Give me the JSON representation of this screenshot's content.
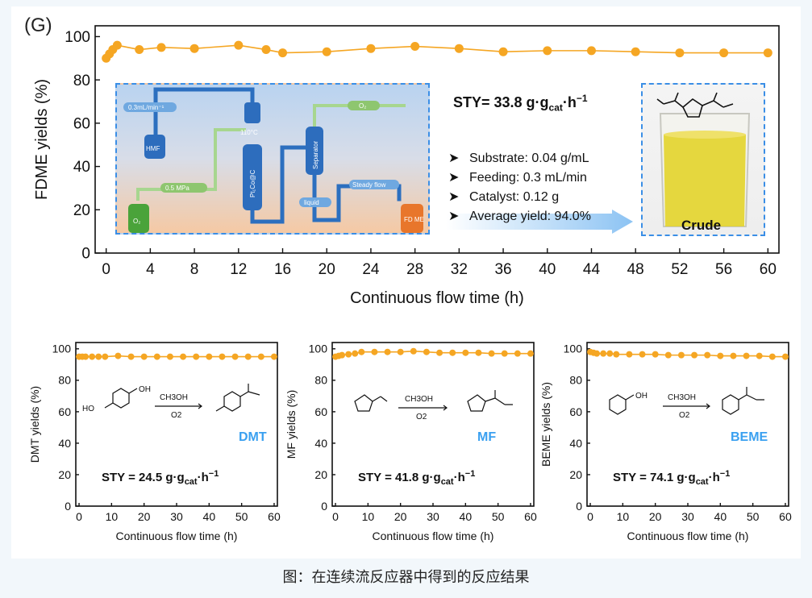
{
  "panel_label": "(G)",
  "caption": "图：在连续流反应器中得到的反应结果",
  "colors": {
    "marker": "#f5a623",
    "line": "#f5a623",
    "accent_blue": "#3a8ee6",
    "tag_blue": "#3aa0f0"
  },
  "main_annotations": {
    "sty_prefix": "STY= 33.8 g·g",
    "sty_sub": "cat",
    "sty_suffix": "·h",
    "sty_sup": "−1",
    "bullets": [
      "Substrate: 0.04 g/mL",
      "Feeding: 0.3 mL/min",
      "Catalyst: 0.12 g",
      "Average yield: 94.0%"
    ],
    "crude_label": "Crude",
    "flow_labels": [
      "0.3mL/min⁻¹",
      "HMF",
      "110°C",
      "Pt₁Co@C",
      "Separator",
      "O₂",
      "0.5 MPa",
      "liquid",
      "Steady flow",
      "O₂",
      "FD ME"
    ]
  },
  "subpanels": [
    {
      "sty": "STY = 24.5 g·g",
      "sub": "cat",
      "suffix": "·h",
      "sup": "−1",
      "tag": "DMT",
      "reagent_top": "CH3OH",
      "reagent_bottom": "O2"
    },
    {
      "sty": "STY = 41.8 g·g",
      "sub": "cat",
      "suffix": "·h",
      "sup": "−1",
      "tag": "MF",
      "reagent_top": "CH3OH",
      "reagent_bottom": "O2"
    },
    {
      "sty": "STY = 74.1 g·g",
      "sub": "cat",
      "suffix": "·h",
      "sup": "−1",
      "tag": "BEME",
      "reagent_top": "CH3OH",
      "reagent_bottom": "O2"
    }
  ],
  "chart_data": [
    {
      "type": "line",
      "xlabel": "Continuous flow time (h)",
      "ylabel": "FDME yields (%)",
      "xlim": [
        -1,
        61
      ],
      "ylim": [
        0,
        105
      ],
      "xticks": [
        0,
        4,
        8,
        12,
        16,
        20,
        24,
        28,
        32,
        36,
        40,
        44,
        48,
        52,
        56,
        60
      ],
      "yticks": [
        0,
        20,
        40,
        60,
        80,
        100
      ],
      "series": [
        {
          "x": [
            0,
            0.3,
            0.6,
            1,
            3,
            5,
            8,
            12,
            14.5,
            16,
            20,
            24,
            28,
            32,
            36,
            40,
            44,
            48,
            52,
            56,
            60
          ],
          "y": [
            90,
            92,
            94,
            96,
            94,
            95,
            94.5,
            96,
            94,
            92.5,
            93,
            94.5,
            95.5,
            94.5,
            93,
            93.5,
            93.5,
            93,
            92.5,
            92.5,
            92.5
          ]
        }
      ]
    },
    {
      "type": "line",
      "xlabel": "Continuous flow time (h)",
      "ylabel": "DMT yields (%)",
      "xlim": [
        -1,
        61
      ],
      "ylim": [
        0,
        104
      ],
      "xticks": [
        0,
        10,
        20,
        30,
        40,
        50,
        60
      ],
      "yticks": [
        0,
        20,
        40,
        60,
        80,
        100
      ],
      "series": [
        {
          "x": [
            0,
            1,
            2,
            4,
            6,
            8,
            12,
            16,
            20,
            24,
            28,
            32,
            36,
            40,
            44,
            48,
            52,
            56,
            60
          ],
          "y": [
            95,
            95,
            95,
            95,
            95,
            95,
            95.5,
            95,
            95,
            95,
            95,
            95,
            95,
            95,
            95,
            95,
            95,
            95,
            95
          ]
        }
      ]
    },
    {
      "type": "line",
      "xlabel": "Continuous flow time (h)",
      "ylabel": "MF yields (%)",
      "xlim": [
        -1,
        61
      ],
      "ylim": [
        0,
        104
      ],
      "xticks": [
        0,
        10,
        20,
        30,
        40,
        50,
        60
      ],
      "yticks": [
        0,
        20,
        40,
        60,
        80,
        100
      ],
      "series": [
        {
          "x": [
            0,
            1,
            2,
            4,
            6,
            8,
            12,
            16,
            20,
            24,
            28,
            32,
            36,
            40,
            44,
            48,
            52,
            56,
            60
          ],
          "y": [
            95,
            95.5,
            96,
            96.5,
            97,
            98,
            98,
            98,
            98,
            98.5,
            98,
            97.5,
            97.5,
            97.5,
            97.5,
            97,
            97,
            97,
            97
          ]
        }
      ]
    },
    {
      "type": "line",
      "xlabel": "Continuous flow time (h)",
      "ylabel": "BEME yields (%)",
      "xlim": [
        -1,
        61
      ],
      "ylim": [
        0,
        104
      ],
      "xticks": [
        0,
        10,
        20,
        30,
        40,
        50,
        60
      ],
      "yticks": [
        0,
        20,
        40,
        60,
        80,
        100
      ],
      "series": [
        {
          "x": [
            0,
            1,
            2,
            4,
            6,
            8,
            12,
            16,
            20,
            24,
            28,
            32,
            36,
            40,
            44,
            48,
            52,
            56,
            60
          ],
          "y": [
            98,
            97.5,
            97,
            97,
            97,
            96.5,
            96.5,
            96.5,
            96.5,
            96,
            96,
            96,
            96,
            95.5,
            95.5,
            95.5,
            95.5,
            95,
            95
          ]
        }
      ]
    }
  ]
}
